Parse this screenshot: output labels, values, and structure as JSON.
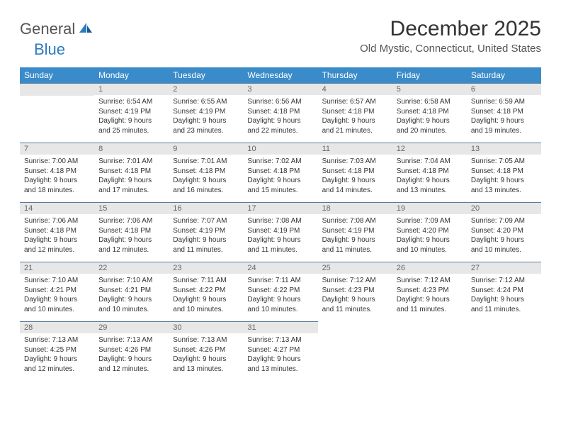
{
  "logo": {
    "text1": "General",
    "text2": "Blue",
    "text1_color": "#555555",
    "text2_color": "#2c7abf"
  },
  "title": "December 2025",
  "location": "Old Mystic, Connecticut, United States",
  "header_bg": "#3a8bc9",
  "header_text_color": "#ffffff",
  "daynum_bg": "#e7e7e7",
  "daynum_border": "#5a7a9a",
  "day_headers": [
    "Sunday",
    "Monday",
    "Tuesday",
    "Wednesday",
    "Thursday",
    "Friday",
    "Saturday"
  ],
  "weeks": [
    [
      {
        "day": "",
        "lines": []
      },
      {
        "day": "1",
        "lines": [
          "Sunrise: 6:54 AM",
          "Sunset: 4:19 PM",
          "Daylight: 9 hours",
          "and 25 minutes."
        ]
      },
      {
        "day": "2",
        "lines": [
          "Sunrise: 6:55 AM",
          "Sunset: 4:19 PM",
          "Daylight: 9 hours",
          "and 23 minutes."
        ]
      },
      {
        "day": "3",
        "lines": [
          "Sunrise: 6:56 AM",
          "Sunset: 4:18 PM",
          "Daylight: 9 hours",
          "and 22 minutes."
        ]
      },
      {
        "day": "4",
        "lines": [
          "Sunrise: 6:57 AM",
          "Sunset: 4:18 PM",
          "Daylight: 9 hours",
          "and 21 minutes."
        ]
      },
      {
        "day": "5",
        "lines": [
          "Sunrise: 6:58 AM",
          "Sunset: 4:18 PM",
          "Daylight: 9 hours",
          "and 20 minutes."
        ]
      },
      {
        "day": "6",
        "lines": [
          "Sunrise: 6:59 AM",
          "Sunset: 4:18 PM",
          "Daylight: 9 hours",
          "and 19 minutes."
        ]
      }
    ],
    [
      {
        "day": "7",
        "lines": [
          "Sunrise: 7:00 AM",
          "Sunset: 4:18 PM",
          "Daylight: 9 hours",
          "and 18 minutes."
        ]
      },
      {
        "day": "8",
        "lines": [
          "Sunrise: 7:01 AM",
          "Sunset: 4:18 PM",
          "Daylight: 9 hours",
          "and 17 minutes."
        ]
      },
      {
        "day": "9",
        "lines": [
          "Sunrise: 7:01 AM",
          "Sunset: 4:18 PM",
          "Daylight: 9 hours",
          "and 16 minutes."
        ]
      },
      {
        "day": "10",
        "lines": [
          "Sunrise: 7:02 AM",
          "Sunset: 4:18 PM",
          "Daylight: 9 hours",
          "and 15 minutes."
        ]
      },
      {
        "day": "11",
        "lines": [
          "Sunrise: 7:03 AM",
          "Sunset: 4:18 PM",
          "Daylight: 9 hours",
          "and 14 minutes."
        ]
      },
      {
        "day": "12",
        "lines": [
          "Sunrise: 7:04 AM",
          "Sunset: 4:18 PM",
          "Daylight: 9 hours",
          "and 13 minutes."
        ]
      },
      {
        "day": "13",
        "lines": [
          "Sunrise: 7:05 AM",
          "Sunset: 4:18 PM",
          "Daylight: 9 hours",
          "and 13 minutes."
        ]
      }
    ],
    [
      {
        "day": "14",
        "lines": [
          "Sunrise: 7:06 AM",
          "Sunset: 4:18 PM",
          "Daylight: 9 hours",
          "and 12 minutes."
        ]
      },
      {
        "day": "15",
        "lines": [
          "Sunrise: 7:06 AM",
          "Sunset: 4:18 PM",
          "Daylight: 9 hours",
          "and 12 minutes."
        ]
      },
      {
        "day": "16",
        "lines": [
          "Sunrise: 7:07 AM",
          "Sunset: 4:19 PM",
          "Daylight: 9 hours",
          "and 11 minutes."
        ]
      },
      {
        "day": "17",
        "lines": [
          "Sunrise: 7:08 AM",
          "Sunset: 4:19 PM",
          "Daylight: 9 hours",
          "and 11 minutes."
        ]
      },
      {
        "day": "18",
        "lines": [
          "Sunrise: 7:08 AM",
          "Sunset: 4:19 PM",
          "Daylight: 9 hours",
          "and 11 minutes."
        ]
      },
      {
        "day": "19",
        "lines": [
          "Sunrise: 7:09 AM",
          "Sunset: 4:20 PM",
          "Daylight: 9 hours",
          "and 10 minutes."
        ]
      },
      {
        "day": "20",
        "lines": [
          "Sunrise: 7:09 AM",
          "Sunset: 4:20 PM",
          "Daylight: 9 hours",
          "and 10 minutes."
        ]
      }
    ],
    [
      {
        "day": "21",
        "lines": [
          "Sunrise: 7:10 AM",
          "Sunset: 4:21 PM",
          "Daylight: 9 hours",
          "and 10 minutes."
        ]
      },
      {
        "day": "22",
        "lines": [
          "Sunrise: 7:10 AM",
          "Sunset: 4:21 PM",
          "Daylight: 9 hours",
          "and 10 minutes."
        ]
      },
      {
        "day": "23",
        "lines": [
          "Sunrise: 7:11 AM",
          "Sunset: 4:22 PM",
          "Daylight: 9 hours",
          "and 10 minutes."
        ]
      },
      {
        "day": "24",
        "lines": [
          "Sunrise: 7:11 AM",
          "Sunset: 4:22 PM",
          "Daylight: 9 hours",
          "and 10 minutes."
        ]
      },
      {
        "day": "25",
        "lines": [
          "Sunrise: 7:12 AM",
          "Sunset: 4:23 PM",
          "Daylight: 9 hours",
          "and 11 minutes."
        ]
      },
      {
        "day": "26",
        "lines": [
          "Sunrise: 7:12 AM",
          "Sunset: 4:23 PM",
          "Daylight: 9 hours",
          "and 11 minutes."
        ]
      },
      {
        "day": "27",
        "lines": [
          "Sunrise: 7:12 AM",
          "Sunset: 4:24 PM",
          "Daylight: 9 hours",
          "and 11 minutes."
        ]
      }
    ],
    [
      {
        "day": "28",
        "lines": [
          "Sunrise: 7:13 AM",
          "Sunset: 4:25 PM",
          "Daylight: 9 hours",
          "and 12 minutes."
        ]
      },
      {
        "day": "29",
        "lines": [
          "Sunrise: 7:13 AM",
          "Sunset: 4:26 PM",
          "Daylight: 9 hours",
          "and 12 minutes."
        ]
      },
      {
        "day": "30",
        "lines": [
          "Sunrise: 7:13 AM",
          "Sunset: 4:26 PM",
          "Daylight: 9 hours",
          "and 13 minutes."
        ]
      },
      {
        "day": "31",
        "lines": [
          "Sunrise: 7:13 AM",
          "Sunset: 4:27 PM",
          "Daylight: 9 hours",
          "and 13 minutes."
        ]
      },
      {
        "day": "",
        "lines": []
      },
      {
        "day": "",
        "lines": []
      },
      {
        "day": "",
        "lines": []
      }
    ]
  ]
}
